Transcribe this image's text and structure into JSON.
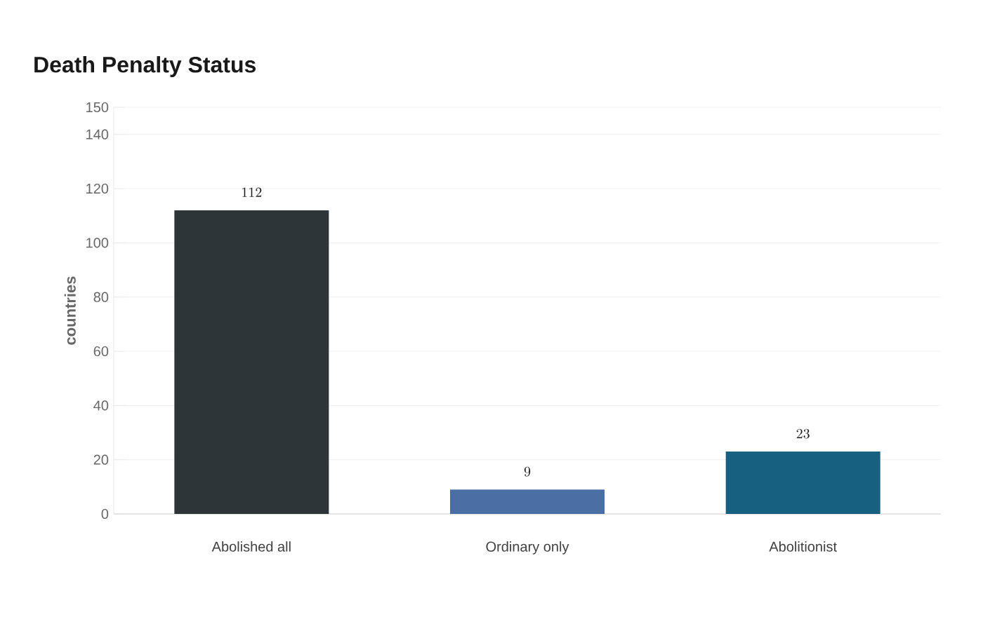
{
  "chart_data": {
    "type": "bar",
    "title": "Death Penalty Status",
    "ylabel": "countries",
    "categories": [
      "Abolished all",
      "Ordinary only",
      "Abolitionist"
    ],
    "values": [
      112,
      9,
      23
    ],
    "colors": [
      "#2e3538",
      "#4a6fa5",
      "#17607f"
    ],
    "ylim": [
      0,
      150
    ],
    "yticks": [
      0,
      20,
      40,
      60,
      80,
      100,
      120,
      140,
      150
    ],
    "grid": "y",
    "data_labels": true
  }
}
